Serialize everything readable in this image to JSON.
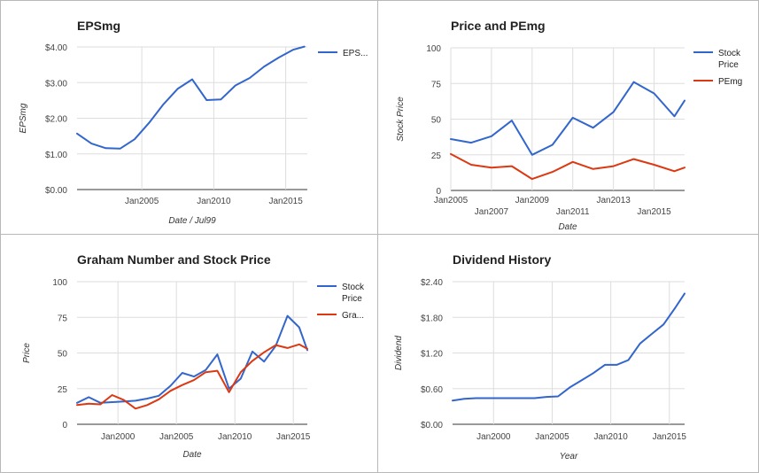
{
  "colors": {
    "blue": "#3366cc",
    "red": "#dc3912"
  },
  "chart_data": [
    {
      "type": "line",
      "title": "EPSmg",
      "xlabel": "Date / Jul99",
      "ylabel": "EPSmg",
      "xlim": [
        2000.5,
        2016.5
      ],
      "ylim": [
        0,
        4
      ],
      "y_ticks": [
        0,
        1,
        2,
        3,
        4
      ],
      "y_tick_labels": [
        "$0.00",
        "$1.00",
        "$2.00",
        "$3.00",
        "$4.00"
      ],
      "x_ticks": [
        2005,
        2010,
        2015
      ],
      "x_tick_labels": [
        "Jan2005",
        "Jan2010",
        "Jan2015"
      ],
      "grid": true,
      "legend": "right",
      "series": [
        {
          "name": "EPS...",
          "color": "#3366cc",
          "x": [
            2000.5,
            2001.5,
            2002.5,
            2003.5,
            2004.5,
            2005.5,
            2006.5,
            2007.5,
            2008.5,
            2009.5,
            2010.5,
            2011.5,
            2012.5,
            2013.5,
            2014.5,
            2015.5,
            2016.3
          ],
          "y": [
            1.57,
            1.29,
            1.16,
            1.15,
            1.41,
            1.87,
            2.39,
            2.83,
            3.09,
            2.51,
            2.53,
            2.92,
            3.13,
            3.45,
            3.7,
            3.92,
            4.01
          ]
        }
      ]
    },
    {
      "type": "line",
      "title": "Price and PEmg",
      "xlabel": "Date",
      "ylabel": "Stock Price",
      "xlim": [
        2005,
        2016.5
      ],
      "ylim": [
        0,
        100
      ],
      "y_ticks": [
        0,
        25,
        50,
        75,
        100
      ],
      "y_tick_labels": [
        "0",
        "25",
        "50",
        "75",
        "100"
      ],
      "x_ticks": [
        2005,
        2007,
        2009,
        2011,
        2013,
        2015
      ],
      "x_tick_labels": [
        "Jan2005",
        "Jan2007",
        "Jan2009",
        "Jan2011",
        "Jan2013",
        "Jan2015"
      ],
      "grid": true,
      "legend": "right",
      "series": [
        {
          "name": "Stock Price",
          "label_lines": [
            "Stock",
            "Price"
          ],
          "color": "#3366cc",
          "x": [
            2005,
            2006,
            2007,
            2008,
            2009,
            2010,
            2011,
            2012,
            2013,
            2014,
            2015,
            2016,
            2016.5
          ],
          "y": [
            36,
            33.5,
            38,
            49,
            25,
            32,
            51,
            44,
            55,
            76,
            68,
            52,
            63
          ]
        },
        {
          "name": "PEmg",
          "label_lines": [
            "PEmg"
          ],
          "color": "#dc3912",
          "x": [
            2005,
            2006,
            2007,
            2008,
            2009,
            2010,
            2011,
            2012,
            2013,
            2014,
            2015,
            2016,
            2016.5
          ],
          "y": [
            25.5,
            18,
            16,
            17,
            8,
            13,
            20,
            15,
            17,
            22,
            18,
            13.5,
            16
          ]
        }
      ]
    },
    {
      "type": "line",
      "title": "Graham Number and Stock Price",
      "xlabel": "Date",
      "ylabel": "Price",
      "xlim": [
        1996.5,
        2016.2
      ],
      "ylim": [
        0,
        100
      ],
      "y_ticks": [
        0,
        25,
        50,
        75,
        100
      ],
      "y_tick_labels": [
        "0",
        "25",
        "50",
        "75",
        "100"
      ],
      "x_ticks": [
        2000,
        2005,
        2010,
        2015
      ],
      "x_tick_labels": [
        "Jan2000",
        "Jan2005",
        "Jan2010",
        "Jan2015"
      ],
      "grid": true,
      "legend": "right",
      "series": [
        {
          "name": "Stock Price",
          "label_lines": [
            "Stock",
            "Price"
          ],
          "color": "#3366cc",
          "x": [
            1996.5,
            1997.5,
            1998.5,
            1999.5,
            2000.5,
            2001.5,
            2002.5,
            2003.5,
            2004.5,
            2005.5,
            2006.5,
            2007.5,
            2008.5,
            2009.5,
            2010.5,
            2011.5,
            2012.5,
            2013.5,
            2014.5,
            2015.5,
            2016.2
          ],
          "y": [
            15,
            19,
            15,
            15.5,
            16,
            16.5,
            18,
            20,
            27,
            36,
            33.5,
            38,
            49,
            25,
            32,
            51,
            44,
            55,
            76,
            68,
            52
          ]
        },
        {
          "name": "Gra...",
          "label_lines": [
            "Gra..."
          ],
          "color": "#dc3912",
          "x": [
            1996.5,
            1997.5,
            1998.5,
            1999.5,
            2000.5,
            2001.5,
            2002.5,
            2003.5,
            2004.5,
            2005.5,
            2006.5,
            2007.5,
            2008.5,
            2009.5,
            2010.5,
            2011.5,
            2012.5,
            2013.5,
            2014.5,
            2015.5,
            2016.2
          ],
          "y": [
            13.5,
            14.5,
            14,
            20.5,
            17,
            11,
            13.5,
            17.5,
            23.5,
            27.5,
            31,
            36.5,
            37.5,
            22.5,
            36.5,
            44.5,
            50.5,
            55.5,
            53.5,
            56,
            53
          ]
        }
      ]
    },
    {
      "type": "line",
      "title": "Dividend History",
      "xlabel": "Year",
      "ylabel": "Dividend",
      "xlim": [
        1996.5,
        2016.3
      ],
      "ylim": [
        0,
        2.4
      ],
      "y_ticks": [
        0,
        0.6,
        1.2,
        1.8,
        2.4
      ],
      "y_tick_labels": [
        "$0.00",
        "$0.60",
        "$1.20",
        "$1.80",
        "$2.40"
      ],
      "x_ticks": [
        2000,
        2005,
        2010,
        2015
      ],
      "x_tick_labels": [
        "Jan2000",
        "Jan2005",
        "Jan2010",
        "Jan2015"
      ],
      "grid": true,
      "legend": "none",
      "series": [
        {
          "name": "",
          "color": "#3366cc",
          "x": [
            1996.5,
            1997.5,
            1998.5,
            1999.5,
            2000.5,
            2001.5,
            2002.5,
            2003.5,
            2004.5,
            2005.5,
            2006.5,
            2007.5,
            2008.5,
            2009.5,
            2010.5,
            2011.5,
            2012.5,
            2013.5,
            2014.5,
            2015.5,
            2016.3
          ],
          "y": [
            0.4,
            0.43,
            0.44,
            0.44,
            0.44,
            0.44,
            0.44,
            0.44,
            0.46,
            0.47,
            0.62,
            0.74,
            0.86,
            1.0,
            1.0,
            1.08,
            1.36,
            1.52,
            1.68,
            1.96,
            2.2
          ]
        }
      ]
    }
  ]
}
